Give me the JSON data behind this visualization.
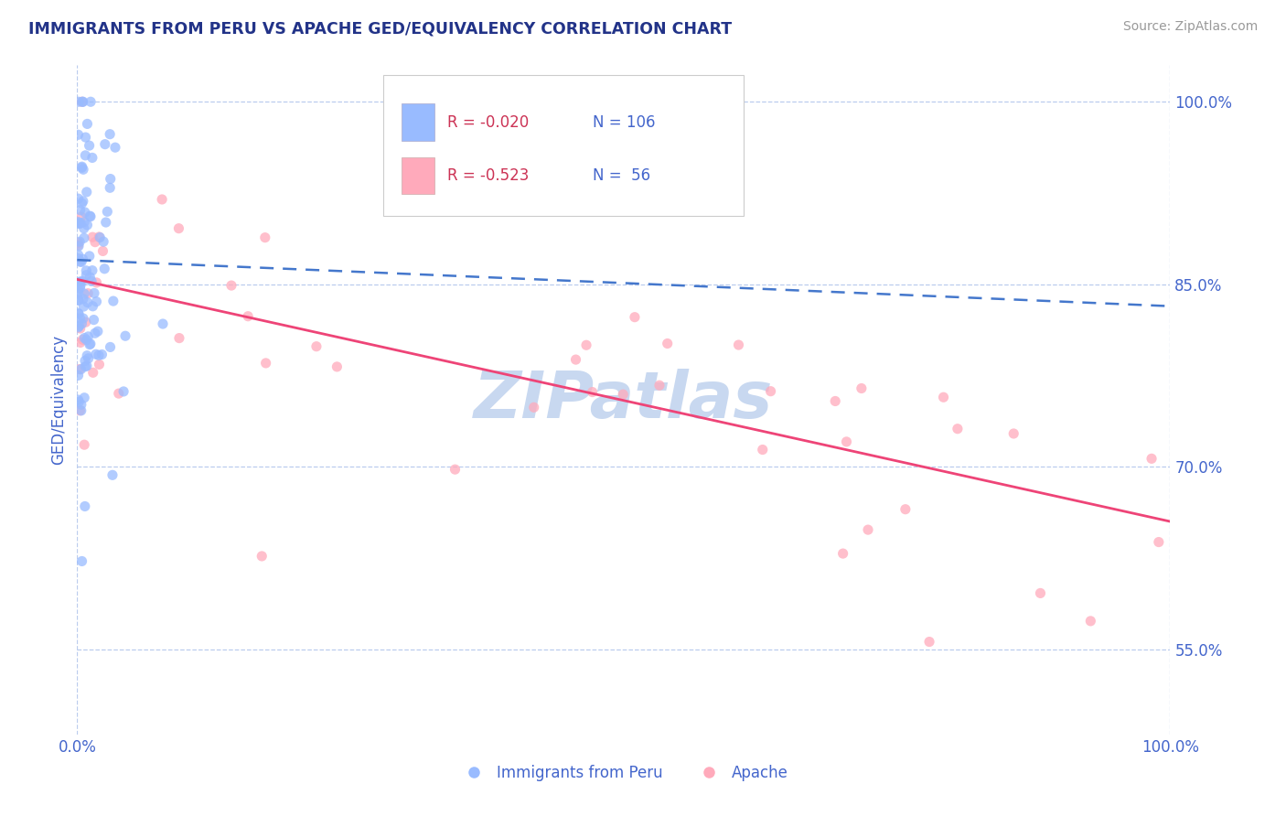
{
  "title": "IMMIGRANTS FROM PERU VS APACHE GED/EQUIVALENCY CORRELATION CHART",
  "source_text": "Source: ZipAtlas.com",
  "ylabel": "GED/Equivalency",
  "xlim": [
    0.0,
    1.0
  ],
  "ylim": [
    0.48,
    1.03
  ],
  "yticks": [
    0.55,
    0.7,
    0.85,
    1.0
  ],
  "ytick_labels": [
    "55.0%",
    "70.0%",
    "85.0%",
    "100.0%"
  ],
  "xtick_labels": [
    "0.0%",
    "100.0%"
  ],
  "xticks": [
    0.0,
    1.0
  ],
  "legend_r_blue": "-0.020",
  "legend_n_blue": "106",
  "legend_r_pink": "-0.523",
  "legend_n_pink": " 56",
  "blue_color": "#99bbff",
  "pink_color": "#ffaabb",
  "trend_blue_color": "#4477cc",
  "trend_pink_color": "#ee4477",
  "r_value_color": "#cc3355",
  "n_value_color": "#4466cc",
  "legend_label_blue": "Immigrants from Peru",
  "legend_label_pink": "Apache",
  "background_color": "#ffffff",
  "grid_color": "#bbccee",
  "title_color": "#223388",
  "axis_label_color": "#4466cc",
  "source_color": "#999999",
  "watermark_text": "ZIPatlas",
  "watermark_color": "#c8d8f0",
  "blue_trend_start_y": 0.87,
  "blue_trend_end_y": 0.832,
  "pink_trend_start_y": 0.854,
  "pink_trend_end_y": 0.655
}
